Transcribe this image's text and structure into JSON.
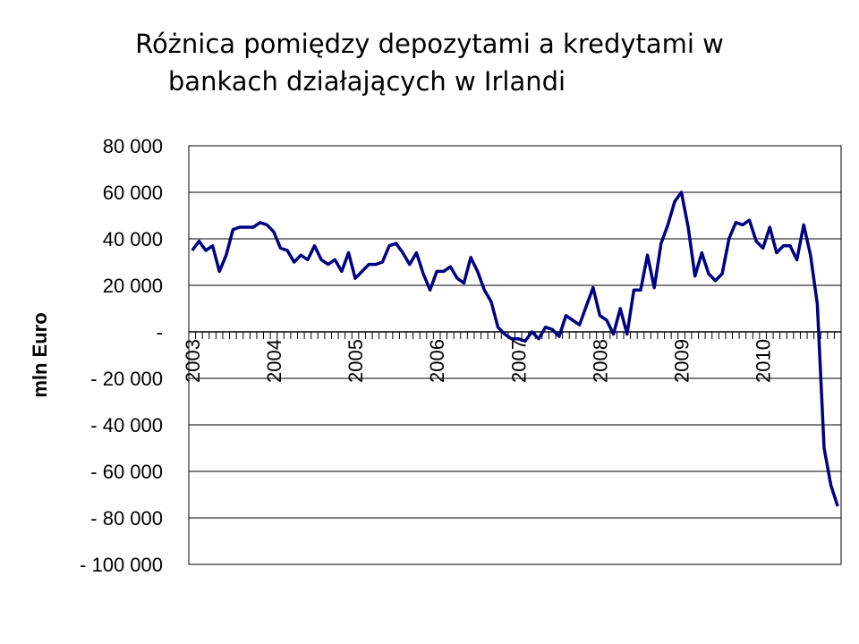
{
  "chart_data": {
    "type": "line",
    "title_line1": "Różnica pomiędzy depozytami a kredytami w",
    "title_line2": "bankach działających w Irlandi",
    "ylabel": "mln Euro",
    "xlabel": "",
    "ylim": [
      -100000,
      80000
    ],
    "y_ticks": [
      80000,
      60000,
      40000,
      20000,
      0,
      -20000,
      -40000,
      -60000,
      -80000,
      -100000
    ],
    "y_tick_labels": [
      "80 000",
      "60 000",
      "40 000",
      "20 000",
      "-",
      "- 20 000",
      "- 40 000",
      "- 60 000",
      "- 80 000",
      "- 100 000"
    ],
    "x_tick_labels": [
      "2003",
      "2004",
      "2005",
      "2006",
      "2007",
      "2008",
      "2009",
      "2010"
    ],
    "grid": true,
    "legend": "none",
    "line_color": "#000080",
    "series": [
      {
        "values": [
          35000,
          39000,
          35000,
          37000,
          26000,
          33000,
          44000,
          45000,
          45000,
          45000,
          47000,
          46000,
          43000,
          36000,
          35000,
          30000,
          33000,
          31000,
          37000,
          31000,
          29000,
          31000,
          26000,
          34000,
          23000,
          26000,
          29000,
          29000,
          30000,
          37000,
          38000,
          34000,
          29000,
          34000,
          25000,
          18000,
          26000,
          26000,
          28000,
          23000,
          21000,
          32000,
          26000,
          18000,
          13000,
          2000,
          -1000,
          -3000,
          -3000,
          -4000,
          0,
          -3000,
          2000,
          1000,
          -2000,
          7000,
          5000,
          3000,
          11000,
          19000,
          7000,
          5000,
          -1000,
          10000,
          -1000,
          18000,
          18000,
          33000,
          19000,
          38000,
          46000,
          56000,
          60000,
          45000,
          24000,
          34000,
          25000,
          22000,
          25000,
          40000,
          47000,
          46000,
          48000,
          39000,
          36000,
          45000,
          34000,
          37000,
          37000,
          31000,
          46000,
          33000,
          12000,
          -50000,
          -66000,
          -75000
        ]
      }
    ]
  }
}
